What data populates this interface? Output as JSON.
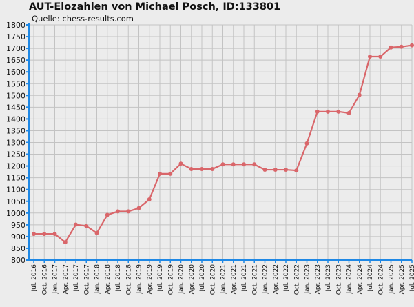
{
  "chart_data": {
    "type": "line",
    "title": "AUT-Elozahlen von Michael Posch, ID:133801",
    "subtitle": "Quelle: chess-results.com",
    "x": [
      "Jul. 2016",
      "Oct. 2016",
      "Jan. 2017",
      "Apr. 2017",
      "Jul. 2017",
      "Oct. 2017",
      "Jan. 2018",
      "Apr. 2018",
      "Jul. 2018",
      "Oct. 2018",
      "Jan. 2019",
      "Apr. 2019",
      "Jul. 2019",
      "Oct. 2019",
      "Jan. 2020",
      "Apr. 2020",
      "Jul. 2020",
      "Oct. 2020",
      "Jan. 2021",
      "Apr. 2021",
      "Jul. 2021",
      "Oct. 2021",
      "Jan. 2022",
      "Apr. 2022",
      "Jul. 2022",
      "Oct. 2022",
      "Jan. 2023",
      "Apr. 2023",
      "Jul. 2023",
      "Oct. 2023",
      "Jan. 2024",
      "Apr. 2024",
      "Jul. 2024",
      "Oct. 2024",
      "Jan. 2025",
      "Apr. 2025",
      "Jul. 2025"
    ],
    "series": [
      {
        "values": [
          911,
          911,
          911,
          876,
          951,
          945,
          915,
          992,
          1007,
          1007,
          1021,
          1058,
          1167,
          1167,
          1210,
          1187,
          1187,
          1187,
          1207,
          1207,
          1207,
          1207,
          1184,
          1184,
          1184,
          1181,
          1296,
          1431,
          1431,
          1431,
          1425,
          1502,
          1665,
          1665,
          1704,
          1707,
          1713
        ],
        "color": "#d9666a"
      }
    ],
    "ylim": [
      800,
      1800
    ],
    "yticks": [
      800,
      850,
      900,
      950,
      1000,
      1050,
      1100,
      1150,
      1200,
      1250,
      1300,
      1350,
      1400,
      1450,
      1500,
      1550,
      1600,
      1650,
      1700,
      1750,
      1800
    ],
    "grid": true,
    "axis_color": "#1e88e5",
    "grid_color": "#c3c3c3"
  }
}
